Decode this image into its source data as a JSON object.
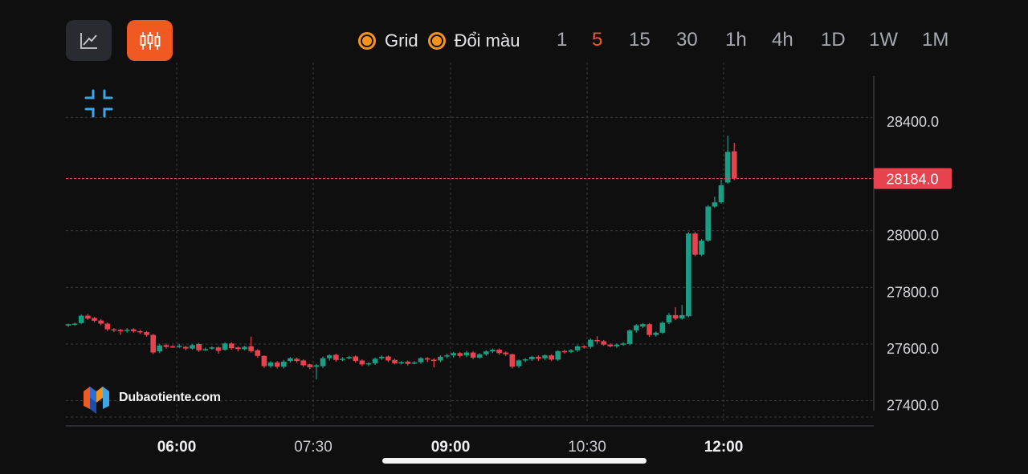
{
  "toolbar": {
    "grid_label": "Grid",
    "color_label": "Đổi màu",
    "timeframes": [
      "1",
      "5",
      "15",
      "30",
      "1h",
      "4h",
      "1D",
      "1W",
      "1M"
    ],
    "active_timeframe": "5"
  },
  "brand": {
    "name": "Dubaotiente.com"
  },
  "colors": {
    "up": "#1a9e83",
    "down": "#e8424f",
    "accent": "#f05a22",
    "toggle": "#f7931a",
    "price_tag": "#e8424f"
  },
  "chart_data": {
    "type": "candlestick",
    "x_ticks": [
      {
        "label": "06:00",
        "bold": true
      },
      {
        "label": "07:30",
        "bold": false
      },
      {
        "label": "09:00",
        "bold": true
      },
      {
        "label": "10:30",
        "bold": false
      },
      {
        "label": "12:00",
        "bold": true
      }
    ],
    "y_ticks": [
      "28400.0",
      "28000.0",
      "27800.0",
      "27600.0",
      "27400.0"
    ],
    "ylim": [
      27365,
      28545
    ],
    "grid": true,
    "last_price": 28184.0,
    "last_price_label": "28184.0",
    "candles": [
      [
        27665,
        27670,
        27660,
        27672
      ],
      [
        27670,
        27672,
        27664,
        27676
      ],
      [
        27674,
        27700,
        27670,
        27704
      ],
      [
        27700,
        27690,
        27685,
        27706
      ],
      [
        27692,
        27682,
        27676,
        27696
      ],
      [
        27683,
        27672,
        27666,
        27688
      ],
      [
        27672,
        27652,
        27646,
        27676
      ],
      [
        27652,
        27648,
        27642,
        27656
      ],
      [
        27650,
        27645,
        27632,
        27654
      ],
      [
        27648,
        27650,
        27640,
        27656
      ],
      [
        27652,
        27645,
        27640,
        27656
      ],
      [
        27645,
        27642,
        27636,
        27650
      ],
      [
        27642,
        27632,
        27626,
        27646
      ],
      [
        27632,
        27570,
        27565,
        27636
      ],
      [
        27574,
        27595,
        27568,
        27600
      ],
      [
        27596,
        27590,
        27584,
        27602
      ],
      [
        27592,
        27590,
        27586,
        27596
      ],
      [
        27592,
        27594,
        27586,
        27600
      ],
      [
        27590,
        27584,
        27578,
        27594
      ],
      [
        27584,
        27596,
        27580,
        27600
      ],
      [
        27600,
        27578,
        27572,
        27604
      ],
      [
        27580,
        27582,
        27576,
        27588
      ],
      [
        27584,
        27588,
        27580,
        27592
      ],
      [
        27588,
        27576,
        27566,
        27592
      ],
      [
        27580,
        27602,
        27576,
        27606
      ],
      [
        27602,
        27585,
        27580,
        27606
      ],
      [
        27588,
        27582,
        27574,
        27592
      ],
      [
        27582,
        27590,
        27578,
        27594
      ],
      [
        27592,
        27575,
        27570,
        27626
      ],
      [
        27578,
        27558,
        27552,
        27582
      ],
      [
        27558,
        27522,
        27516,
        27560
      ],
      [
        27522,
        27535,
        27516,
        27540
      ],
      [
        27535,
        27520,
        27514,
        27540
      ],
      [
        27520,
        27538,
        27514,
        27544
      ],
      [
        27540,
        27550,
        27534,
        27554
      ],
      [
        27548,
        27540,
        27534,
        27552
      ],
      [
        27542,
        27525,
        27520,
        27546
      ],
      [
        27528,
        27518,
        27512,
        27530
      ],
      [
        27520,
        27525,
        27475,
        27530
      ],
      [
        27522,
        27550,
        27516,
        27556
      ],
      [
        27550,
        27560,
        27542,
        27564
      ],
      [
        27562,
        27544,
        27538,
        27566
      ],
      [
        27546,
        27548,
        27540,
        27554
      ],
      [
        27550,
        27554,
        27546,
        27558
      ],
      [
        27556,
        27540,
        27534,
        27560
      ],
      [
        27542,
        27528,
        27522,
        27546
      ],
      [
        27530,
        27532,
        27522,
        27536
      ],
      [
        27532,
        27548,
        27526,
        27552
      ],
      [
        27550,
        27555,
        27544,
        27560
      ],
      [
        27556,
        27542,
        27536,
        27560
      ],
      [
        27544,
        27532,
        27528,
        27548
      ],
      [
        27534,
        27536,
        27528,
        27540
      ],
      [
        27538,
        27530,
        27524,
        27542
      ],
      [
        27532,
        27535,
        27528,
        27540
      ],
      [
        27536,
        27550,
        27530,
        27554
      ],
      [
        27550,
        27545,
        27536,
        27554
      ],
      [
        27545,
        27540,
        27518,
        27550
      ],
      [
        27542,
        27555,
        27536,
        27560
      ],
      [
        27556,
        27560,
        27550,
        27566
      ],
      [
        27560,
        27568,
        27552,
        27572
      ],
      [
        27568,
        27558,
        27552,
        27572
      ],
      [
        27560,
        27570,
        27554,
        27576
      ],
      [
        27570,
        27552,
        27546,
        27574
      ],
      [
        27552,
        27564,
        27548,
        27568
      ],
      [
        27564,
        27574,
        27558,
        27578
      ],
      [
        27574,
        27580,
        27568,
        27584
      ],
      [
        27580,
        27568,
        27562,
        27584
      ],
      [
        27570,
        27564,
        27558,
        27574
      ],
      [
        27564,
        27520,
        27514,
        27566
      ],
      [
        27522,
        27542,
        27516,
        27546
      ],
      [
        27542,
        27546,
        27536,
        27550
      ],
      [
        27546,
        27555,
        27540,
        27558
      ],
      [
        27555,
        27548,
        27540,
        27560
      ],
      [
        27550,
        27560,
        27544,
        27564
      ],
      [
        27560,
        27545,
        27540,
        27564
      ],
      [
        27545,
        27575,
        27540,
        27578
      ],
      [
        27575,
        27572,
        27566,
        27580
      ],
      [
        27572,
        27578,
        27568,
        27582
      ],
      [
        27578,
        27592,
        27572,
        27596
      ],
      [
        27592,
        27590,
        27584,
        27596
      ],
      [
        27590,
        27615,
        27584,
        27620
      ],
      [
        27614,
        27612,
        27602,
        27628
      ],
      [
        27610,
        27598,
        27594,
        27614
      ],
      [
        27598,
        27592,
        27588,
        27602
      ],
      [
        27592,
        27598,
        27586,
        27602
      ],
      [
        27598,
        27602,
        27594,
        27606
      ],
      [
        27600,
        27648,
        27596,
        27652
      ],
      [
        27648,
        27666,
        27640,
        27670
      ],
      [
        27662,
        27670,
        27656,
        27674
      ],
      [
        27670,
        27632,
        27625,
        27674
      ],
      [
        27632,
        27640,
        27626,
        27644
      ],
      [
        27640,
        27675,
        27636,
        27680
      ],
      [
        27676,
        27702,
        27670,
        27710
      ],
      [
        27702,
        27690,
        27684,
        27730
      ],
      [
        27690,
        27702,
        27686,
        27738
      ],
      [
        27698,
        27990,
        27694,
        27995
      ],
      [
        27990,
        27915,
        27910,
        27995
      ],
      [
        27915,
        27965,
        27910,
        27970
      ],
      [
        27965,
        28085,
        27960,
        28090
      ],
      [
        28085,
        28100,
        28080,
        28120
      ],
      [
        28100,
        28160,
        28095,
        28180
      ],
      [
        28170,
        28278,
        28165,
        28335
      ],
      [
        28280,
        28184,
        28178,
        28310
      ]
    ]
  }
}
